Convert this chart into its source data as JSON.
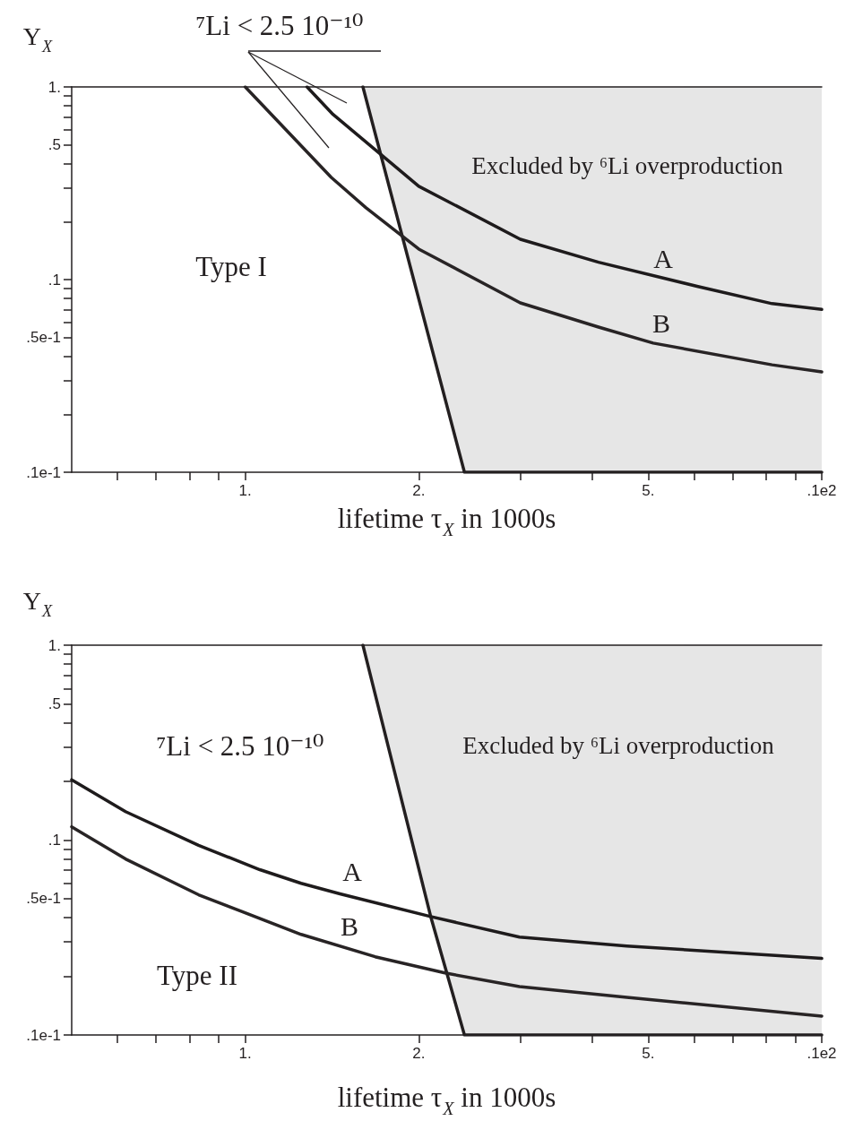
{
  "chart_data": [
    {
      "type": "line",
      "xlabel": "lifetime τ$_{X}$ in 1000s",
      "ylabel": "Y$_{X}$",
      "log": "xy",
      "marker": "none",
      "line_style": "solid",
      "xlim": [
        0.5,
        10
      ],
      "ylim": [
        0.01,
        1
      ],
      "xticks": [
        {
          "value": 0.6,
          "label": null
        },
        {
          "value": 0.7,
          "label": null
        },
        {
          "value": 0.8,
          "label": null
        },
        {
          "value": 0.9,
          "label": null
        },
        {
          "value": 1,
          "label": "1."
        },
        {
          "value": 2,
          "label": "2."
        },
        {
          "value": 3,
          "label": null
        },
        {
          "value": 4,
          "label": null
        },
        {
          "value": 5,
          "label": "5."
        },
        {
          "value": 6,
          "label": null
        },
        {
          "value": 7,
          "label": null
        },
        {
          "value": 8,
          "label": null
        },
        {
          "value": 9,
          "label": null
        },
        {
          "value": 10,
          "label": ".1e2"
        }
      ],
      "yticks": [
        {
          "value": 0.01,
          "label": ".1e-1"
        },
        {
          "value": 0.02,
          "label": null
        },
        {
          "value": 0.03,
          "label": null
        },
        {
          "value": 0.04,
          "label": null
        },
        {
          "value": 0.05,
          "label": ".5e-1"
        },
        {
          "value": 0.06,
          "label": null
        },
        {
          "value": 0.07,
          "label": null
        },
        {
          "value": 0.08,
          "label": null
        },
        {
          "value": 0.09,
          "label": null
        },
        {
          "value": 0.1,
          "label": ".1"
        },
        {
          "value": 0.2,
          "label": null
        },
        {
          "value": 0.3,
          "label": null
        },
        {
          "value": 0.4,
          "label": null
        },
        {
          "value": 0.5,
          "label": ".5"
        },
        {
          "value": 0.6,
          "label": null
        },
        {
          "value": 0.7,
          "label": null
        },
        {
          "value": 0.8,
          "label": null
        },
        {
          "value": 0.9,
          "label": null
        },
        {
          "value": 1,
          "label": "1."
        }
      ],
      "series": [
        {
          "x": [
            1.6,
            2.4,
            10
          ],
          "values": [
            1,
            0.01,
            0.01
          ],
          "lower": [
            1,
            0.01,
            0.01
          ],
          "upper": [
            1,
            1,
            1
          ],
          "color": "#231f20"
        },
        {
          "x": [
            1.28,
            1.42,
            2,
            3,
            4.1,
            6.1,
            8.2,
            10
          ],
          "values": [
            1,
            0.72,
            0.305,
            0.162,
            0.123,
            0.092,
            0.075,
            0.07
          ],
          "color": "#1e1b1c"
        },
        {
          "x": [
            1,
            1.41,
            1.62,
            2,
            3,
            4.1,
            5.1,
            8.2,
            10
          ],
          "values": [
            1,
            0.339,
            0.236,
            0.144,
            0.0757,
            0.0567,
            0.0468,
            0.0361,
            0.0332
          ],
          "color": "#282425"
        }
      ],
      "annotations": [
        "⁷Li < 2.5 10⁻¹⁰",
        "Excluded by ⁶Li overproduction",
        "Type I",
        "A",
        "B"
      ]
    },
    {
      "type": "line",
      "xlabel": "lifetime τ$_{X}$ in 1000s",
      "ylabel": "Y$_{X}$",
      "log": "xy",
      "marker": "none",
      "line_style": "solid",
      "xlim": [
        0.5,
        10
      ],
      "ylim": [
        0.01,
        1
      ],
      "xticks": [
        {
          "value": 0.6,
          "label": null
        },
        {
          "value": 0.7,
          "label": null
        },
        {
          "value": 0.8,
          "label": null
        },
        {
          "value": 0.9,
          "label": null
        },
        {
          "value": 1,
          "label": "1."
        },
        {
          "value": 2,
          "label": "2."
        },
        {
          "value": 3,
          "label": null
        },
        {
          "value": 4,
          "label": null
        },
        {
          "value": 5,
          "label": "5."
        },
        {
          "value": 6,
          "label": null
        },
        {
          "value": 7,
          "label": null
        },
        {
          "value": 8,
          "label": null
        },
        {
          "value": 9,
          "label": null
        },
        {
          "value": 10,
          "label": ".1e2"
        }
      ],
      "yticks": [
        {
          "value": 0.01,
          "label": ".1e-1"
        },
        {
          "value": 0.02,
          "label": null
        },
        {
          "value": 0.03,
          "label": null
        },
        {
          "value": 0.04,
          "label": null
        },
        {
          "value": 0.05,
          "label": ".5e-1"
        },
        {
          "value": 0.06,
          "label": null
        },
        {
          "value": 0.07,
          "label": null
        },
        {
          "value": 0.08,
          "label": null
        },
        {
          "value": 0.09,
          "label": null
        },
        {
          "value": 0.1,
          "label": ".1"
        },
        {
          "value": 0.2,
          "label": null
        },
        {
          "value": 0.3,
          "label": null
        },
        {
          "value": 0.4,
          "label": null
        },
        {
          "value": 0.5,
          "label": ".5"
        },
        {
          "value": 0.6,
          "label": null
        },
        {
          "value": 0.7,
          "label": null
        },
        {
          "value": 0.8,
          "label": null
        },
        {
          "value": 0.9,
          "label": null
        },
        {
          "value": 1,
          "label": "1."
        }
      ],
      "series": [
        {
          "x": [
            1.6,
            2.1,
            2.4,
            10
          ],
          "values": [
            1,
            0.04,
            0.01,
            0.01
          ],
          "lower": [
            1,
            0.04,
            0.01,
            0.01
          ],
          "upper": [
            1,
            1,
            1,
            1
          ],
          "color": "#231f20"
        },
        {
          "x": [
            0.5,
            0.62,
            0.83,
            1.06,
            1.25,
            1.46,
            2.09,
            2.99,
            4.59,
            10
          ],
          "values": [
            0.204,
            0.14,
            0.094,
            0.0705,
            0.06,
            0.053,
            0.0406,
            0.0318,
            0.0286,
            0.0247
          ],
          "color": "#1e1b1c"
        },
        {
          "x": [
            0.5,
            0.62,
            0.83,
            1.25,
            1.68,
            2.22,
            2.99,
            4.59,
            10
          ],
          "values": [
            0.117,
            0.08,
            0.0524,
            0.0328,
            0.0252,
            0.0208,
            0.0177,
            0.0156,
            0.0125
          ],
          "color": "#282425"
        }
      ],
      "annotations": [
        "⁷Li < 2.5 10⁻¹⁰",
        "Excluded by ⁶Li overproduction",
        "Type II",
        "A",
        "B"
      ]
    }
  ]
}
